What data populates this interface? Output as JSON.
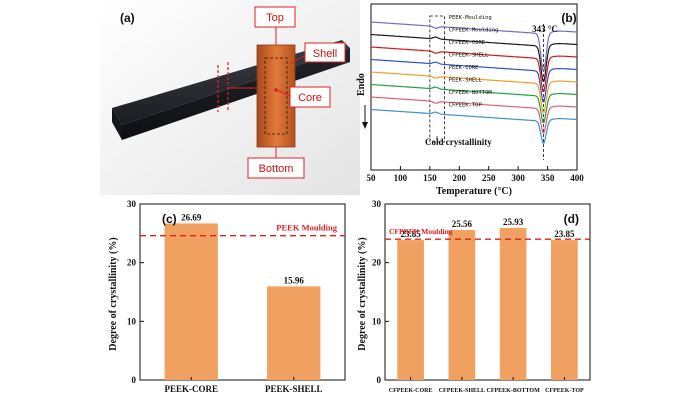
{
  "panel_a": {
    "label": "(a)",
    "callouts": {
      "top": "Top",
      "shell": "Shell",
      "core": "Core",
      "bottom": "Bottom"
    }
  },
  "chart_data": [
    {
      "panel": "(b)",
      "type": "line",
      "title": "",
      "xlabel": "Temperature (°C)",
      "ylabel": "Endo",
      "xlim": [
        50,
        400
      ],
      "xticks": [
        50,
        100,
        150,
        200,
        250,
        300,
        350,
        400
      ],
      "annotations": [
        "343 °C",
        "Cold crystallinity"
      ],
      "series": [
        {
          "name": "PEEK-Moulding",
          "color": "#6f6fc0"
        },
        {
          "name": "CFPEEK-Moulding",
          "color": "#1a1a1a"
        },
        {
          "name": "CFPEEK-CORE",
          "color": "#d01818"
        },
        {
          "name": "CFPEEK-SHELL",
          "color": "#3050c8"
        },
        {
          "name": "PEEK-CORE",
          "color": "#f0a020"
        },
        {
          "name": "PEEK-SHELL",
          "color": "#20a040"
        },
        {
          "name": "CFPEEK-BOTTOM",
          "color": "#e06070"
        },
        {
          "name": "CFPEEK-TOP",
          "color": "#4090d0"
        }
      ]
    },
    {
      "panel": "(c)",
      "type": "bar",
      "categories": [
        "PEEK-CORE",
        "PEEK-SHELL"
      ],
      "values": [
        26.69,
        15.96
      ],
      "value_labels": [
        "26.69",
        "15.96"
      ],
      "ylabel": "Degree of crystallinity (%)",
      "ylim": [
        0,
        30
      ],
      "yticks": [
        0,
        10,
        20,
        30
      ],
      "reference_line": {
        "label": "PEEK Moulding",
        "value": 24.6
      },
      "bar_color": "#f0a060"
    },
    {
      "panel": "(d)",
      "type": "bar",
      "categories": [
        "CFPEEK-CORE",
        "CFPEEK-SHELL",
        "CFPEEK-BOTTOM",
        "CFPEEK-TOP"
      ],
      "values": [
        23.85,
        25.56,
        25.93,
        23.85
      ],
      "value_labels": [
        "23.85",
        "25.56",
        "25.93",
        "23.85"
      ],
      "ylabel": "Degree of crystallinity (%)",
      "ylim": [
        0,
        30
      ],
      "yticks": [
        0,
        10,
        20,
        30
      ],
      "reference_line": {
        "label": "CFPEEK Moulding",
        "value": 24.0
      },
      "bar_color": "#f0a060"
    }
  ]
}
